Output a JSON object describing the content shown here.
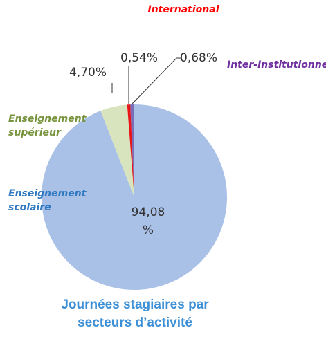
{
  "chart_data": {
    "type": "pie",
    "title": "Journées stagiaires par secteurs d’activité",
    "categories": [
      "Enseignement scolaire",
      "Enseignement supérieur",
      "International",
      "Inter-Institutionnel"
    ],
    "values": [
      94.08,
      4.7,
      0.54,
      0.68
    ],
    "value_labels": [
      "94,08 %",
      "4,70%",
      "0,54%",
      "0,68%"
    ],
    "colors": [
      "#a9c0e7",
      "#d8e4bd",
      "#e8161b",
      "#7c6bb5"
    ],
    "label_colors": [
      "#2f78c0",
      "#77933c",
      "#ff0000",
      "#7030a0"
    ]
  }
}
